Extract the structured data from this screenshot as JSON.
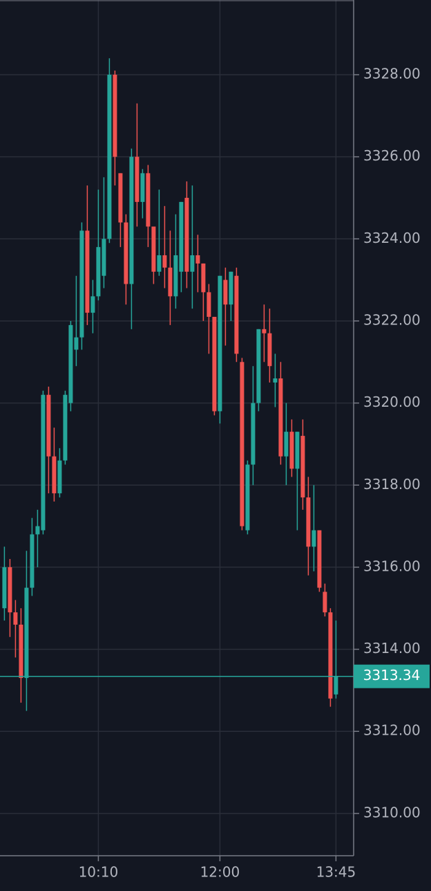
{
  "chart_data": {
    "type": "candlestick",
    "x": [
      "08:45",
      "08:50",
      "08:55",
      "09:00",
      "09:05",
      "09:10",
      "09:15",
      "09:20",
      "09:25",
      "09:30",
      "09:35",
      "09:40",
      "09:45",
      "09:50",
      "09:55",
      "10:00",
      "10:05",
      "10:10",
      "10:15",
      "10:20",
      "10:25",
      "10:30",
      "10:35",
      "10:40",
      "10:45",
      "10:50",
      "10:55",
      "11:00",
      "11:05",
      "11:10",
      "11:15",
      "11:20",
      "11:25",
      "11:30",
      "11:35",
      "11:40",
      "11:45",
      "11:50",
      "11:55",
      "12:00",
      "12:05",
      "12:10",
      "12:15",
      "12:20",
      "12:25",
      "12:30",
      "12:35",
      "12:40",
      "12:45",
      "12:50",
      "12:55",
      "13:00",
      "13:05",
      "13:10",
      "13:15",
      "13:20",
      "13:25",
      "13:30",
      "13:35",
      "13:40",
      "13:45"
    ],
    "open": [
      3315.0,
      3316.0,
      3314.9,
      3314.6,
      3313.3,
      3315.5,
      3316.8,
      3316.9,
      3320.2,
      3318.7,
      3317.8,
      3318.6,
      3320.0,
      3321.3,
      3321.6,
      3324.2,
      3322.2,
      3322.6,
      3323.1,
      3324.0,
      3328.0,
      3325.6,
      3324.4,
      3322.9,
      3326.0,
      3324.9,
      3325.6,
      3324.3,
      3323.2,
      3323.6,
      3323.3,
      3322.6,
      3323.2,
      3325.0,
      3323.2,
      3323.6,
      3323.4,
      3322.7,
      3322.1,
      3319.8,
      3323.0,
      3322.4,
      3323.1,
      3321.0,
      3316.9,
      3318.5,
      3320.0,
      3321.8,
      3321.7,
      3320.5,
      3320.6,
      3318.7,
      3319.3,
      3318.4,
      3319.2,
      3317.7,
      3316.5,
      3316.9,
      3315.4,
      3314.9,
      3312.9
    ],
    "high": [
      3316.5,
      3316.2,
      3315.2,
      3315.0,
      3316.4,
      3317.2,
      3317.4,
      3320.3,
      3320.4,
      3319.4,
      3318.9,
      3320.3,
      3322.0,
      3323.1,
      3324.4,
      3325.3,
      3323.0,
      3325.2,
      3325.5,
      3328.4,
      3328.1,
      3325.6,
      3324.6,
      3326.2,
      3327.3,
      3325.7,
      3325.8,
      3324.3,
      3325.2,
      3324.8,
      3324.2,
      3324.6,
      3324.9,
      3325.4,
      3325.3,
      3324.1,
      3323.4,
      3322.9,
      3322.1,
      3323.1,
      3323.3,
      3323.2,
      3323.3,
      3321.1,
      3318.6,
      3320.9,
      3321.8,
      3322.4,
      3322.3,
      3321.2,
      3321.0,
      3320.0,
      3319.6,
      3319.3,
      3319.6,
      3318.2,
      3318.0,
      3316.9,
      3315.6,
      3315.0,
      3314.7
    ],
    "low": [
      3314.7,
      3314.3,
      3313.8,
      3312.7,
      3312.5,
      3315.3,
      3316.0,
      3316.8,
      3317.8,
      3317.6,
      3317.7,
      3318.5,
      3319.8,
      3320.9,
      3321.3,
      3321.9,
      3321.7,
      3322.5,
      3322.8,
      3323.9,
      3325.3,
      3323.8,
      3322.4,
      3321.8,
      3324.3,
      3324.5,
      3323.8,
      3322.9,
      3323.1,
      3322.8,
      3321.9,
      3322.3,
      3322.7,
      3322.8,
      3322.3,
      3322.7,
      3322.0,
      3321.2,
      3319.7,
      3319.5,
      3321.4,
      3322.0,
      3321.0,
      3316.9,
      3316.8,
      3318.0,
      3319.8,
      3321.0,
      3320.5,
      3319.9,
      3318.5,
      3318.0,
      3318.2,
      3316.9,
      3317.4,
      3315.8,
      3315.9,
      3315.4,
      3314.8,
      3312.6,
      3312.8
    ],
    "close": [
      3316.0,
      3314.9,
      3314.6,
      3313.3,
      3315.5,
      3316.8,
      3317.0,
      3320.2,
      3318.7,
      3317.8,
      3318.6,
      3320.2,
      3321.9,
      3321.6,
      3324.2,
      3322.2,
      3322.6,
      3323.8,
      3324.0,
      3328.0,
      3326.0,
      3324.4,
      3322.9,
      3326.0,
      3324.9,
      3325.6,
      3324.3,
      3323.2,
      3323.6,
      3323.3,
      3322.6,
      3323.6,
      3324.9,
      3323.2,
      3323.6,
      3323.4,
      3322.7,
      3322.1,
      3319.8,
      3323.1,
      3322.4,
      3323.2,
      3321.2,
      3317.0,
      3318.5,
      3320.0,
      3321.8,
      3321.7,
      3320.9,
      3320.6,
      3318.7,
      3319.3,
      3318.4,
      3319.3,
      3317.7,
      3316.5,
      3316.9,
      3315.5,
      3314.9,
      3312.8,
      3313.34
    ],
    "up_color": "#26a69a",
    "down_color": "#ef5350",
    "last_price": 3313.34,
    "xlim": [
      "08:41",
      "14:01"
    ],
    "xticks": [
      "10:10",
      "12:00",
      "13:45"
    ],
    "ylim": [
      3308.97,
      3329.82
    ],
    "yticks": [
      {
        "value": 3310,
        "label": "3310.00"
      },
      {
        "value": 3312,
        "label": "3312.00"
      },
      {
        "value": 3314,
        "label": "3314.00"
      },
      {
        "value": 3316,
        "label": "3316.00"
      },
      {
        "value": 3318,
        "label": "3318.00"
      },
      {
        "value": 3320,
        "label": "3320.00"
      },
      {
        "value": 3322,
        "label": "3322.00"
      },
      {
        "value": 3324,
        "label": "3324.00"
      },
      {
        "value": 3326,
        "label": "3326.00"
      },
      {
        "value": 3328,
        "label": "3328.00"
      }
    ],
    "grid": true
  }
}
